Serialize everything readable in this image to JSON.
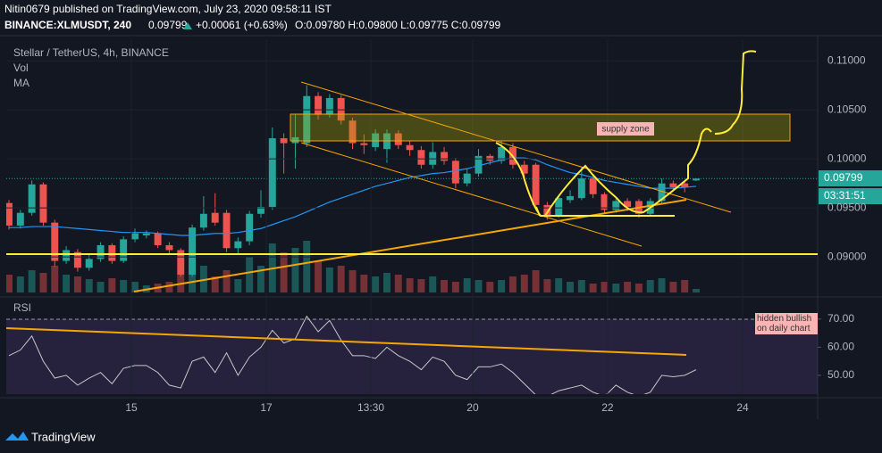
{
  "header": {
    "publisher": "Nitin0679 published on TradingView.com, July 23, 2020 09:58:11 IST",
    "symbol": "BINANCE:XLMUSDT, 240",
    "price": "0.09799",
    "change": "+0.00061 (+0.63%)",
    "ohlc": "O:0.09780 H:0.09800 L:0.09775 C:0.09799"
  },
  "chart_data": {
    "type": "candlestick",
    "title": "Stellar / TetherUS, 4h, BINANCE",
    "volume_label": "Vol",
    "ma_label": "MA",
    "rsi_label": "RSI",
    "annotations": [
      "supply zone",
      "hidden bullish on daily chart"
    ],
    "last_price": {
      "value": 0.09799,
      "label": "0.09799"
    },
    "countdown": "03:31:51",
    "up_color": "#26a69a",
    "down_color": "#ef5350",
    "ma_color": "#2196f3",
    "rsi_color": "#c8c8c8",
    "xlim": [
      -0.234,
      70.61
    ],
    "xticks": [
      {
        "value": 10.69,
        "label": "15"
      },
      {
        "value": 22.47,
        "label": "17"
      },
      {
        "value": 31.6,
        "label": "13:30"
      },
      {
        "value": 40.49,
        "label": "20"
      },
      {
        "value": 52.27,
        "label": "22"
      },
      {
        "value": 64.06,
        "label": "24"
      }
    ],
    "ylim": [
      0.0862,
      0.1121
    ],
    "yticks": [
      {
        "value": 0.11,
        "label": "0.11000"
      },
      {
        "value": 0.105,
        "label": "0.10500"
      },
      {
        "value": 0.1,
        "label": "0.10000"
      },
      {
        "value": 0.095,
        "label": "0.09500"
      },
      {
        "value": 0.09,
        "label": "0.09000"
      }
    ],
    "open": [
      0.0955,
      0.0932,
      0.0945,
      0.0974,
      0.0935,
      0.0896,
      0.0905,
      0.0889,
      0.0898,
      0.0912,
      0.0896,
      0.0918,
      0.0922,
      0.0924,
      0.0912,
      0.0907,
      0.0882,
      0.093,
      0.0945,
      0.0945,
      0.0909,
      0.0916,
      0.0944,
      0.0951,
      0.1021,
      0.1016,
      0.1016,
      0.1064,
      0.1045,
      0.1062,
      0.1039,
      0.1016,
      0.1012,
      0.101,
      0.1026,
      0.1014,
      0.1009,
      0.0994,
      0.1007,
      0.0998,
      0.0975,
      0.0985,
      0.1003,
      0.0998,
      0.1012,
      0.0994,
      0.0994,
      0.0953,
      0.0942,
      0.0958,
      0.096,
      0.098,
      0.0964,
      0.0948,
      0.0957,
      0.0957,
      0.0944,
      0.0957,
      0.0975,
      0.0975,
      0.0978
    ],
    "high": [
      0.0958,
      0.0948,
      0.0978,
      0.0976,
      0.0938,
      0.0911,
      0.0908,
      0.0903,
      0.0915,
      0.0914,
      0.0921,
      0.0929,
      0.0927,
      0.0926,
      0.0915,
      0.0909,
      0.0933,
      0.0962,
      0.0965,
      0.0948,
      0.092,
      0.0947,
      0.0968,
      0.1032,
      0.1026,
      0.1045,
      0.1075,
      0.1068,
      0.1066,
      0.1065,
      0.1042,
      0.1025,
      0.103,
      0.103,
      0.1029,
      0.1018,
      0.1013,
      0.1017,
      0.1012,
      0.1001,
      0.099,
      0.101,
      0.1005,
      0.1018,
      0.1016,
      0.0998,
      0.0996,
      0.0956,
      0.0963,
      0.0968,
      0.0992,
      0.0983,
      0.0966,
      0.096,
      0.096,
      0.0959,
      0.096,
      0.098,
      0.0978,
      0.0977,
      0.098
    ],
    "low": [
      0.0928,
      0.0929,
      0.0942,
      0.0932,
      0.089,
      0.0893,
      0.0885,
      0.0886,
      0.0895,
      0.0893,
      0.0894,
      0.0915,
      0.0919,
      0.0909,
      0.0903,
      0.088,
      0.088,
      0.0927,
      0.0932,
      0.0905,
      0.0903,
      0.0912,
      0.094,
      0.0948,
      0.0985,
      0.099,
      0.1012,
      0.104,
      0.1042,
      0.1035,
      0.101,
      0.1005,
      0.1008,
      0.0996,
      0.101,
      0.1003,
      0.099,
      0.099,
      0.0994,
      0.097,
      0.0972,
      0.0982,
      0.0994,
      0.0995,
      0.099,
      0.098,
      0.0948,
      0.0938,
      0.094,
      0.0955,
      0.0958,
      0.096,
      0.0944,
      0.0945,
      0.0947,
      0.094,
      0.0942,
      0.0955,
      0.0968,
      0.0966,
      0.09775
    ],
    "close": [
      0.0932,
      0.0945,
      0.0974,
      0.0935,
      0.0896,
      0.0907,
      0.0889,
      0.0898,
      0.0912,
      0.0896,
      0.0918,
      0.0924,
      0.0924,
      0.0912,
      0.0907,
      0.0882,
      0.093,
      0.0944,
      0.0935,
      0.0909,
      0.0916,
      0.0944,
      0.0951,
      0.1021,
      0.1016,
      0.1022,
      0.1064,
      0.1045,
      0.1062,
      0.1039,
      0.1016,
      0.1014,
      0.1026,
      0.1026,
      0.1014,
      0.1009,
      0.0994,
      0.1007,
      0.0998,
      0.0975,
      0.0985,
      0.1003,
      0.0998,
      0.1012,
      0.0994,
      0.0985,
      0.0953,
      0.0942,
      0.096,
      0.0962,
      0.098,
      0.0964,
      0.0948,
      0.0957,
      0.0951,
      0.0944,
      0.0957,
      0.0975,
      0.0971,
      0.0971,
      0.09799
    ],
    "volume": [
      20,
      18,
      25,
      22,
      30,
      20,
      18,
      15,
      12,
      16,
      14,
      12,
      8,
      10,
      12,
      20,
      28,
      30,
      18,
      25,
      15,
      40,
      30,
      55,
      45,
      50,
      58,
      35,
      28,
      30,
      25,
      20,
      18,
      22,
      20,
      16,
      15,
      18,
      14,
      12,
      16,
      14,
      12,
      14,
      18,
      20,
      25,
      15,
      16,
      12,
      14,
      10,
      12,
      10,
      12,
      10,
      14,
      16,
      12,
      14,
      4
    ],
    "vlim": [
      0,
      100
    ],
    "ma": [
      0.093,
      0.093,
      0.0931,
      0.0931,
      0.0931,
      0.093,
      0.0929,
      0.0928,
      0.0927,
      0.0926,
      0.0925,
      0.0925,
      0.0925,
      0.0924,
      0.0923,
      0.0922,
      0.0922,
      0.0923,
      0.0924,
      0.0924,
      0.0925,
      0.0927,
      0.0929,
      0.0933,
      0.0937,
      0.0941,
      0.0946,
      0.0951,
      0.0956,
      0.096,
      0.0964,
      0.0968,
      0.0972,
      0.0975,
      0.0978,
      0.0981,
      0.0983,
      0.0985,
      0.0986,
      0.0988,
      0.099,
      0.0993,
      0.0996,
      0.0999,
      0.1001,
      0.1001,
      0.0999,
      0.0994,
      0.099,
      0.0986,
      0.0984,
      0.0981,
      0.0978,
      0.0976,
      0.0974,
      0.0972,
      0.097,
      0.097,
      0.097,
      0.0971,
      0.0972
    ],
    "rsi": [
      57,
      59,
      64,
      55,
      49,
      50,
      46.5,
      49,
      51,
      47,
      52.5,
      53.5,
      53.5,
      51,
      46.5,
      45.5,
      55,
      56.5,
      51,
      58,
      50,
      56.5,
      60,
      66,
      61.5,
      63,
      71,
      65.5,
      69.5,
      62.5,
      57,
      57,
      56,
      60,
      57,
      55,
      52,
      56.5,
      55,
      50,
      48.5,
      53,
      53,
      54,
      51,
      47,
      43,
      42.5,
      44.5,
      45.5,
      46.5,
      44,
      42.5,
      46.5,
      44,
      42.5,
      44,
      50,
      49.5,
      50,
      52
    ],
    "rsi_ylim": [
      43.3,
      76.3
    ],
    "rsi_yticks": [
      {
        "value": 70,
        "label": "70.00"
      },
      {
        "value": 60,
        "label": "60.00"
      },
      {
        "value": 50,
        "label": "50.00"
      }
    ]
  },
  "footer": {
    "logo": "TradingView"
  }
}
